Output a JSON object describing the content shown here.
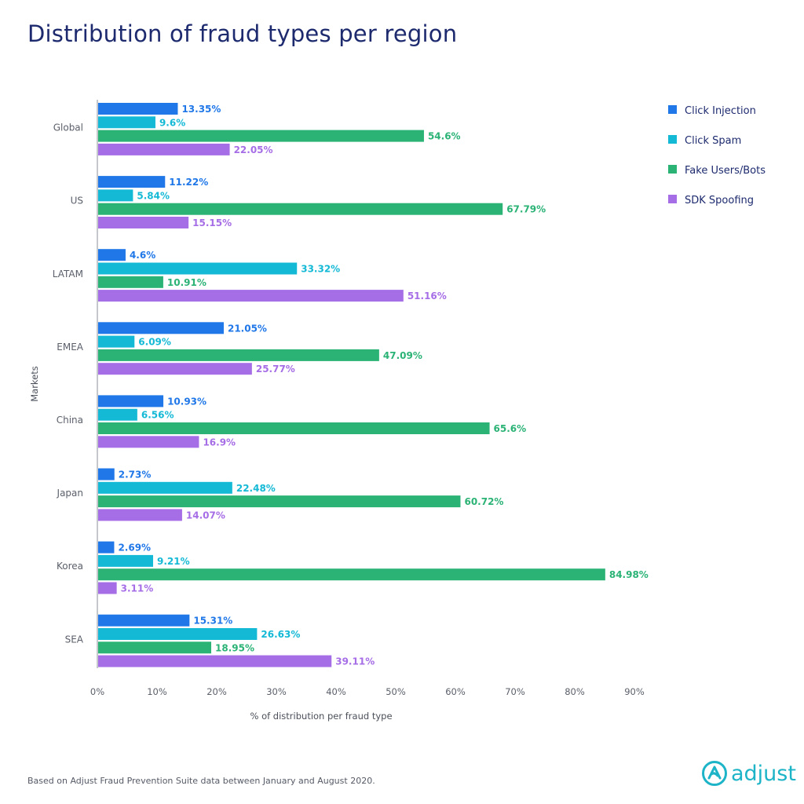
{
  "title": "Distribution of fraud types per region",
  "footnote": "Based on Adjust Fraud Prevention Suite data between January and August 2020.",
  "logo": {
    "text": "adjust",
    "icon": "adjust-logo-icon"
  },
  "colors": {
    "click_injection": "#1f77e8",
    "click_spam": "#14b9d6",
    "fake_users": "#2bb376",
    "sdk_spoofing": "#a66ee6",
    "title": "#1d2a6e",
    "brand": "#1db4c8"
  },
  "chart_data": {
    "type": "bar",
    "orientation": "horizontal",
    "title": "Distribution of fraud types per region",
    "xlabel": "% of distribution per fraud type",
    "ylabel": "Markets",
    "xlim": [
      0,
      90
    ],
    "xticks": [
      "0%",
      "10%",
      "20%",
      "30%",
      "40%",
      "50%",
      "60%",
      "70%",
      "80%",
      "90%"
    ],
    "legend_position": "top-right",
    "categories": [
      "Global",
      "US",
      "LATAM",
      "EMEA",
      "China",
      "Japan",
      "Korea",
      "SEA"
    ],
    "series": [
      {
        "name": "Click Injection",
        "color": "#1f77e8",
        "values": [
          13.35,
          11.22,
          4.6,
          21.05,
          10.93,
          2.73,
          2.69,
          15.31
        ],
        "labels": [
          "13.35%",
          "11.22%",
          "4.6%",
          "21.05%",
          "10.93%",
          "2.73%",
          "2.69%",
          "15.31%"
        ]
      },
      {
        "name": "Click Spam",
        "color": "#14b9d6",
        "values": [
          9.6,
          5.84,
          33.32,
          6.09,
          6.56,
          22.48,
          9.21,
          26.63
        ],
        "labels": [
          "9.6%",
          "5.84%",
          "33.32%",
          "6.09%",
          "6.56%",
          "22.48%",
          "9.21%",
          "26.63%"
        ]
      },
      {
        "name": "Fake Users/Bots",
        "color": "#2bb376",
        "values": [
          54.6,
          67.79,
          10.91,
          47.09,
          65.6,
          60.72,
          84.98,
          18.95
        ],
        "labels": [
          "54.6%",
          "67.79%",
          "10.91%",
          "47.09%",
          "65.6%",
          "60.72%",
          "84.98%",
          "18.95%"
        ]
      },
      {
        "name": "SDK Spoofing",
        "color": "#a66ee6",
        "values": [
          22.05,
          15.15,
          51.16,
          25.77,
          16.9,
          14.07,
          3.11,
          39.11
        ],
        "labels": [
          "22.05%",
          "15.15%",
          "51.16%",
          "25.77%",
          "16.9%",
          "14.07%",
          "3.11%",
          "39.11%"
        ]
      }
    ]
  }
}
